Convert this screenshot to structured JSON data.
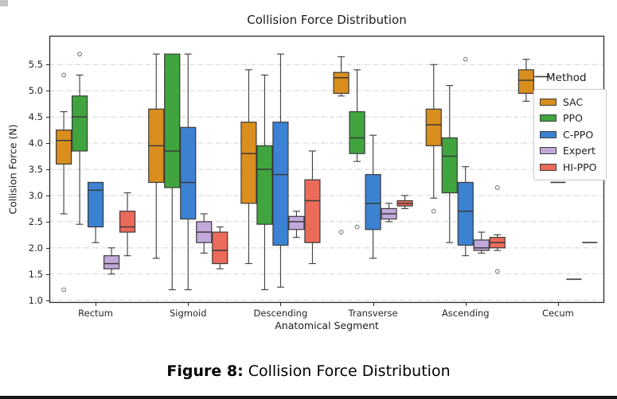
{
  "figure": {
    "caption_label": "Figure 8:",
    "caption_title": "Collision Force Distribution"
  },
  "chart_data": {
    "type": "grouped_boxplot",
    "title": "Collision Force Distribution",
    "xlabel": "Anatomical Segment",
    "ylabel": "Collision Force (N)",
    "ylim": [
      0.95,
      6.05
    ],
    "yticks": [
      1.0,
      1.5,
      2.0,
      2.5,
      3.0,
      3.5,
      4.0,
      4.5,
      5.0,
      5.5
    ],
    "ytick_labels": [
      "1.0",
      "1.5",
      "2.0",
      "2.5",
      "3.0",
      "3.5",
      "4.0",
      "4.5",
      "5.0",
      "5.5"
    ],
    "categories": [
      "Rectum",
      "Sigmoid",
      "Descending",
      "Transverse",
      "Ascending",
      "Cecum"
    ],
    "grid": "horizontal-dashed",
    "legend": {
      "title": "Method",
      "position": "upper right"
    },
    "style": {
      "box_edge_color": "#3b3b3b",
      "grid_color": "#d2d2d2",
      "spine_color": "#2b2b2b",
      "outlier_color": "#6e6e6e"
    },
    "methods": [
      {
        "name": "SAC",
        "color": "#D98E1E"
      },
      {
        "name": "PPO",
        "color": "#40A53F"
      },
      {
        "name": "C-PPO",
        "color": "#3C82D2"
      },
      {
        "name": "Expert",
        "color": "#C2A8DB"
      },
      {
        "name": "HI-PPO",
        "color": "#EC6A5A"
      }
    ],
    "groups": [
      {
        "category": "Rectum",
        "boxes": [
          {
            "method": "SAC",
            "whislo": 2.65,
            "q1": 3.6,
            "med": 4.05,
            "q3": 4.25,
            "whishi": 4.6,
            "outliers": [
              5.3,
              1.2
            ]
          },
          {
            "method": "PPO",
            "whislo": 2.45,
            "q1": 3.85,
            "med": 4.5,
            "q3": 4.9,
            "whishi": 5.3,
            "outliers": [
              5.7
            ]
          },
          {
            "method": "C-PPO",
            "whislo": 2.1,
            "q1": 2.4,
            "med": 3.1,
            "q3": 3.25,
            "whishi": 3.25,
            "outliers": []
          },
          {
            "method": "Expert",
            "whislo": 1.5,
            "q1": 1.6,
            "med": 1.7,
            "q3": 1.85,
            "whishi": 2.0,
            "outliers": []
          },
          {
            "method": "HI-PPO",
            "whislo": 1.85,
            "q1": 2.3,
            "med": 2.4,
            "q3": 2.7,
            "whishi": 3.05,
            "outliers": []
          }
        ]
      },
      {
        "category": "Sigmoid",
        "boxes": [
          {
            "method": "SAC",
            "whislo": 1.8,
            "q1": 3.25,
            "med": 3.95,
            "q3": 4.65,
            "whishi": 5.7,
            "outliers": []
          },
          {
            "method": "PPO",
            "whislo": 1.2,
            "q1": 3.15,
            "med": 3.85,
            "q3": 5.7,
            "whishi": 5.7,
            "outliers": []
          },
          {
            "method": "C-PPO",
            "whislo": 1.2,
            "q1": 2.55,
            "med": 3.25,
            "q3": 4.3,
            "whishi": 5.7,
            "outliers": []
          },
          {
            "method": "Expert",
            "whislo": 1.9,
            "q1": 2.1,
            "med": 2.3,
            "q3": 2.5,
            "whishi": 2.65,
            "outliers": []
          },
          {
            "method": "HI-PPO",
            "whislo": 1.6,
            "q1": 1.7,
            "med": 1.95,
            "q3": 2.3,
            "whishi": 2.4,
            "outliers": []
          }
        ]
      },
      {
        "category": "Descending",
        "boxes": [
          {
            "method": "SAC",
            "whislo": 1.7,
            "q1": 2.85,
            "med": 3.8,
            "q3": 4.4,
            "whishi": 5.4,
            "outliers": []
          },
          {
            "method": "PPO",
            "whislo": 1.2,
            "q1": 2.45,
            "med": 3.5,
            "q3": 3.95,
            "whishi": 5.3,
            "outliers": []
          },
          {
            "method": "C-PPO",
            "whislo": 1.25,
            "q1": 2.05,
            "med": 3.4,
            "q3": 4.4,
            "whishi": 5.7,
            "outliers": []
          },
          {
            "method": "Expert",
            "whislo": 2.2,
            "q1": 2.35,
            "med": 2.5,
            "q3": 2.6,
            "whishi": 2.7,
            "outliers": []
          },
          {
            "method": "HI-PPO",
            "whislo": 1.7,
            "q1": 2.1,
            "med": 2.9,
            "q3": 3.3,
            "whishi": 3.85,
            "outliers": []
          }
        ]
      },
      {
        "category": "Transverse",
        "boxes": [
          {
            "method": "SAC",
            "whislo": 4.9,
            "q1": 4.95,
            "med": 5.25,
            "q3": 5.35,
            "whishi": 5.65,
            "outliers": [
              2.3
            ]
          },
          {
            "method": "PPO",
            "whislo": 3.65,
            "q1": 3.8,
            "med": 4.1,
            "q3": 4.6,
            "whishi": 5.4,
            "outliers": [
              2.4
            ]
          },
          {
            "method": "C-PPO",
            "whislo": 1.8,
            "q1": 2.35,
            "med": 2.85,
            "q3": 3.4,
            "whishi": 4.15,
            "outliers": []
          },
          {
            "method": "Expert",
            "whislo": 2.5,
            "q1": 2.55,
            "med": 2.65,
            "q3": 2.75,
            "whishi": 2.85,
            "outliers": []
          },
          {
            "method": "HI-PPO",
            "whislo": 2.75,
            "q1": 2.8,
            "med": 2.85,
            "q3": 2.9,
            "whishi": 3.0,
            "outliers": []
          }
        ]
      },
      {
        "category": "Ascending",
        "boxes": [
          {
            "method": "SAC",
            "whislo": 2.95,
            "q1": 3.95,
            "med": 4.35,
            "q3": 4.65,
            "whishi": 5.5,
            "outliers": [
              2.7
            ]
          },
          {
            "method": "PPO",
            "whislo": 2.1,
            "q1": 3.05,
            "med": 3.75,
            "q3": 4.1,
            "whishi": 5.1,
            "outliers": []
          },
          {
            "method": "C-PPO",
            "whislo": 1.85,
            "q1": 2.05,
            "med": 2.7,
            "q3": 3.25,
            "whishi": 3.55,
            "outliers": [
              5.6
            ]
          },
          {
            "method": "Expert",
            "whislo": 1.9,
            "q1": 1.95,
            "med": 2.0,
            "q3": 2.15,
            "whishi": 2.3,
            "outliers": []
          },
          {
            "method": "HI-PPO",
            "whislo": 1.95,
            "q1": 2.0,
            "med": 2.1,
            "q3": 2.2,
            "whishi": 2.25,
            "outliers": [
              3.15,
              1.55
            ]
          }
        ]
      },
      {
        "category": "Cecum",
        "boxes": [
          {
            "method": "SAC",
            "whislo": 4.8,
            "q1": 4.95,
            "med": 5.2,
            "q3": 5.4,
            "whishi": 5.6,
            "outliers": []
          },
          {
            "method": "PPO",
            "whislo": 5.27,
            "q1": 5.27,
            "med": 5.27,
            "q3": 5.27,
            "whishi": 5.27,
            "outliers": []
          },
          {
            "method": "C-PPO",
            "whislo": 3.25,
            "q1": 3.25,
            "med": 3.25,
            "q3": 3.25,
            "whishi": 3.25,
            "outliers": []
          },
          {
            "method": "Expert",
            "whislo": 1.4,
            "q1": 1.4,
            "med": 1.4,
            "q3": 1.4,
            "whishi": 1.4,
            "outliers": []
          },
          {
            "method": "HI-PPO",
            "whislo": 2.1,
            "q1": 2.1,
            "med": 2.1,
            "q3": 2.1,
            "whishi": 2.1,
            "outliers": []
          }
        ]
      }
    ]
  }
}
